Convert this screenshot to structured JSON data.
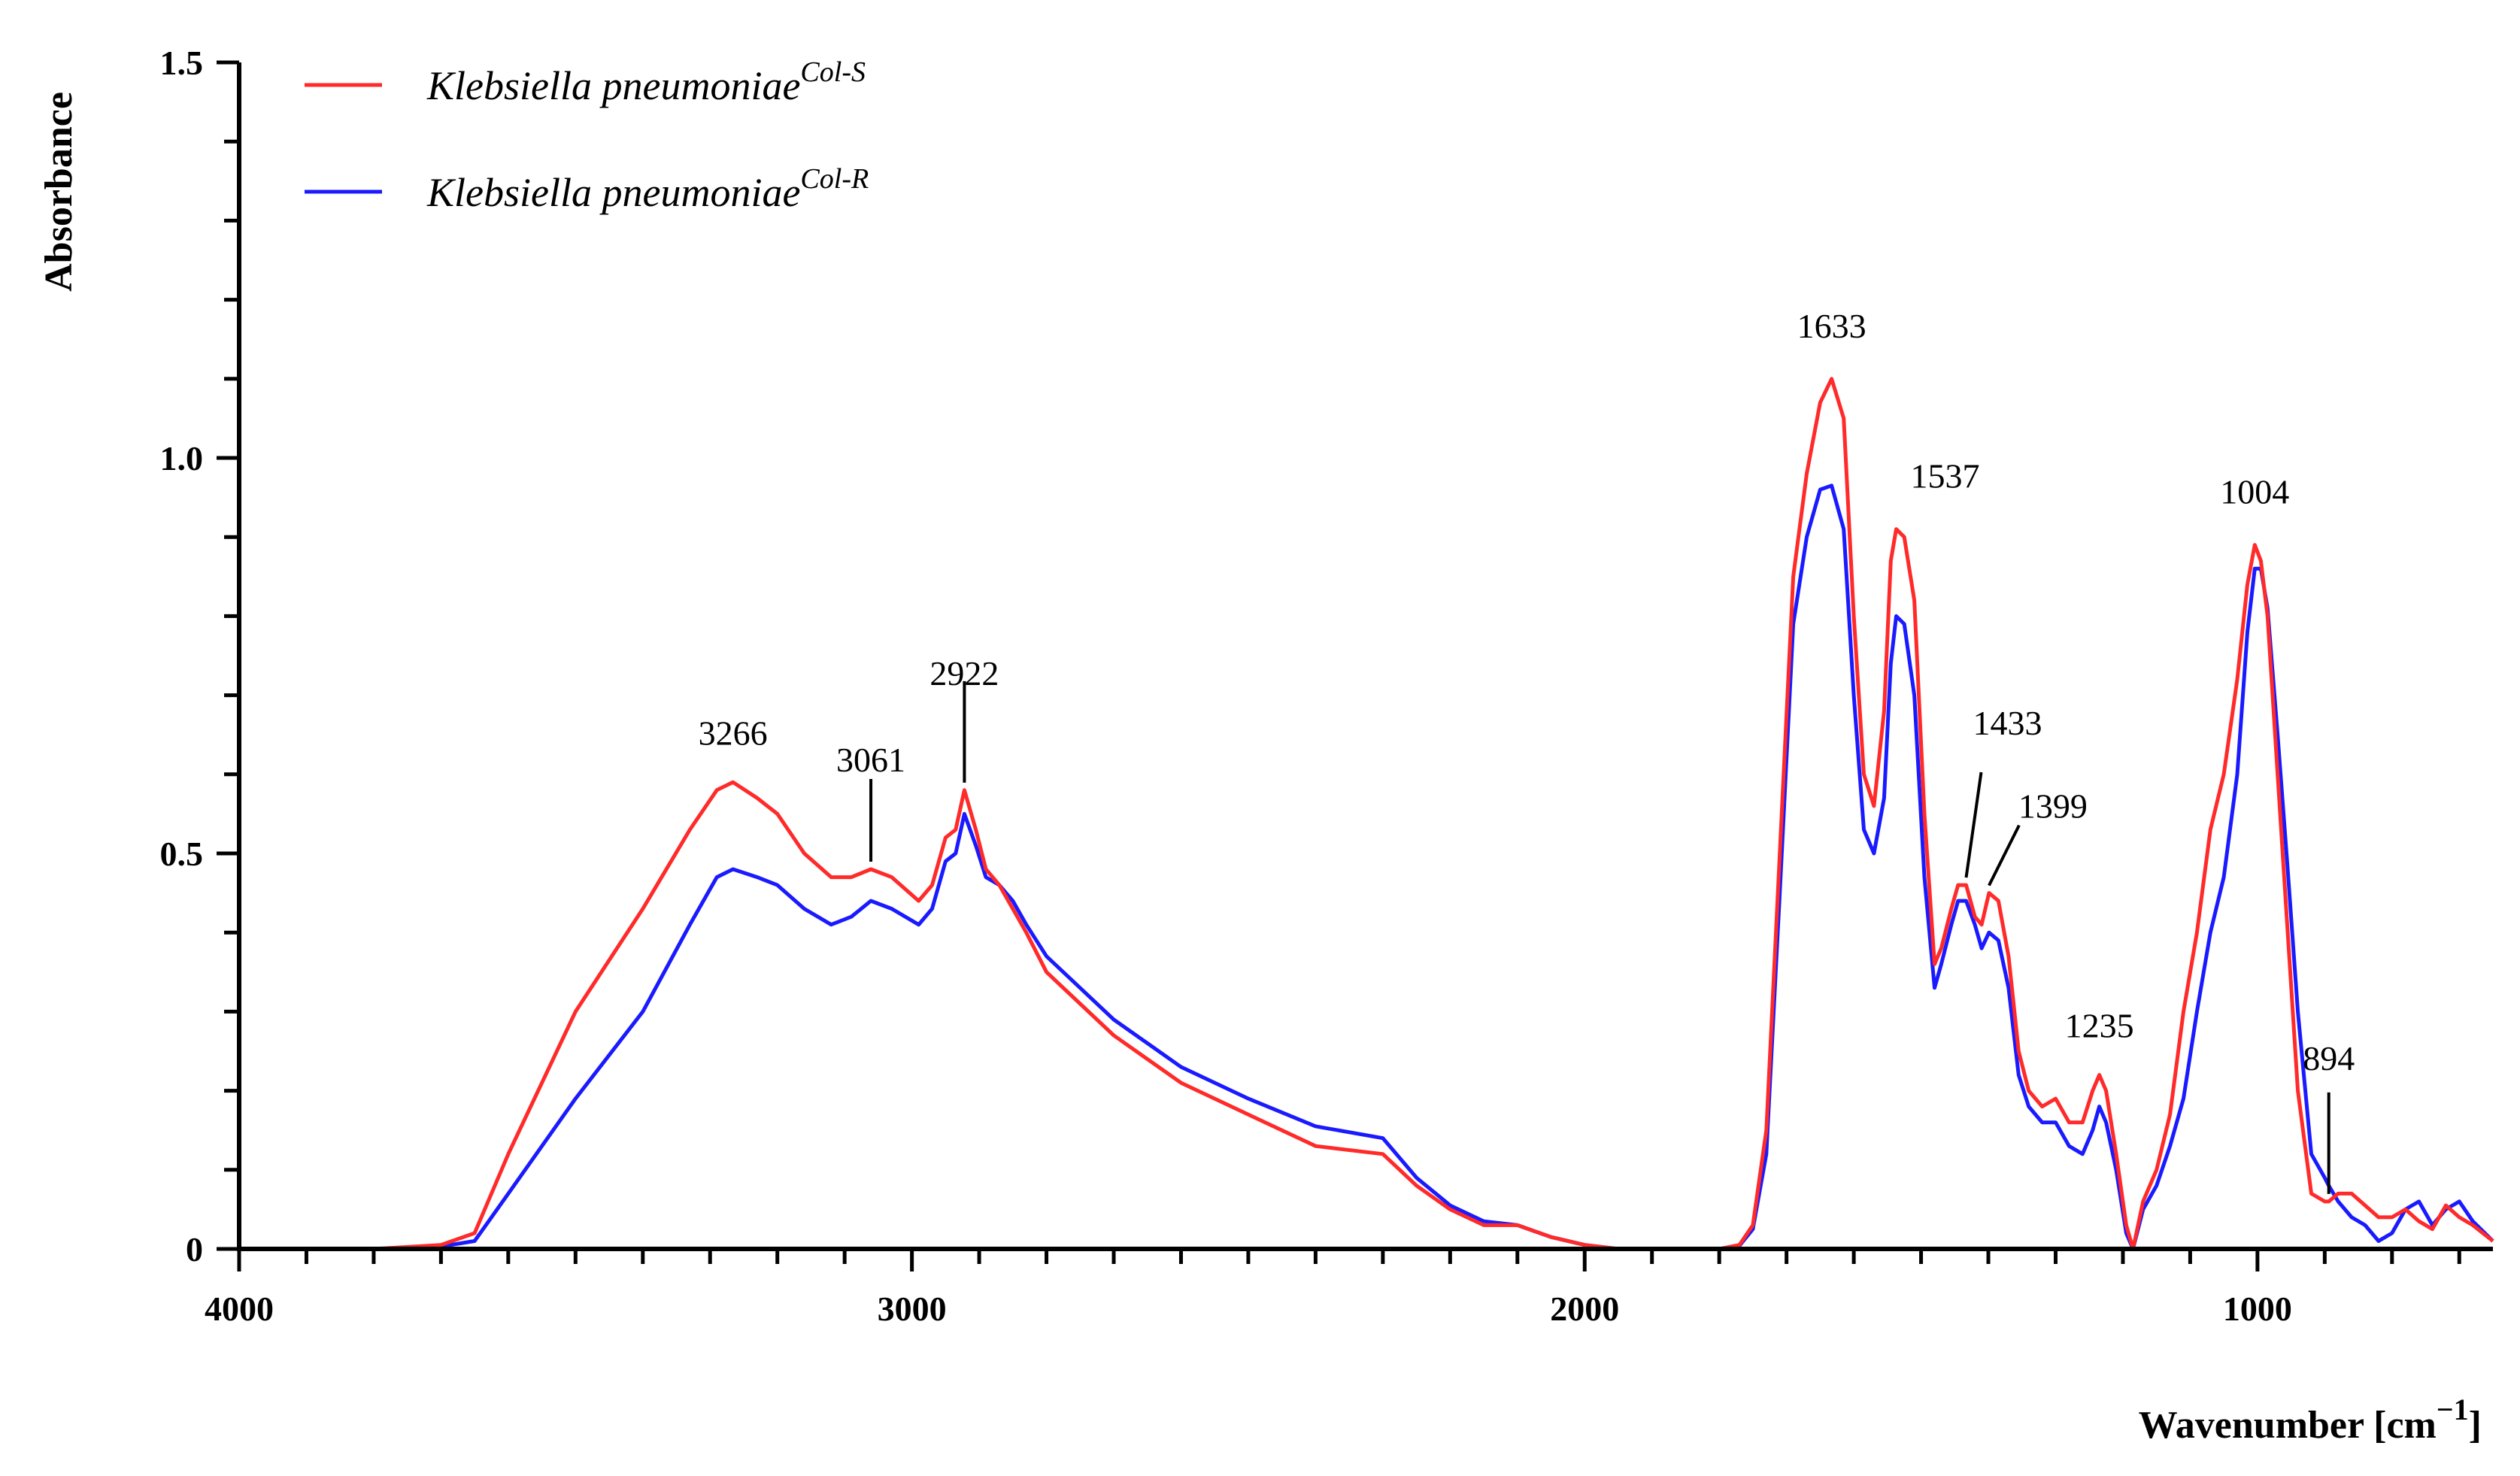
{
  "chart_data": {
    "type": "line",
    "title": "",
    "xlabel": "Wavenumber [cm",
    "xlabel_sup": "−1",
    "xlabel_close": "]",
    "ylabel": "Absorbance",
    "xlim": [
      4000,
      650
    ],
    "ylim": [
      0,
      1.5
    ],
    "x_reversed": true,
    "x_ticks": [
      4000,
      3000,
      2000,
      1000
    ],
    "x_tick_labels": [
      "4000",
      "3000",
      "2000",
      "1000"
    ],
    "y_ticks": [
      0,
      0.5,
      1.0,
      1.5
    ],
    "y_tick_labels": [
      "0",
      "0.5",
      "1.0",
      "1.5"
    ],
    "grid": false,
    "legend_position": "top-left",
    "series": [
      {
        "name": "Klebsiella pneumoniae",
        "name_sup": "Col-S",
        "color": "#ff2a2a",
        "x": [
          4000,
          3800,
          3700,
          3650,
          3600,
          3500,
          3400,
          3330,
          3290,
          3266,
          3230,
          3200,
          3160,
          3120,
          3090,
          3061,
          3030,
          2990,
          2970,
          2950,
          2935,
          2922,
          2905,
          2890,
          2870,
          2850,
          2830,
          2800,
          2700,
          2600,
          2500,
          2400,
          2300,
          2250,
          2200,
          2150,
          2100,
          2050,
          2000,
          1950,
          1900,
          1850,
          1800,
          1770,
          1750,
          1730,
          1710,
          1690,
          1670,
          1650,
          1633,
          1615,
          1600,
          1585,
          1570,
          1555,
          1545,
          1537,
          1525,
          1510,
          1495,
          1480,
          1470,
          1455,
          1445,
          1433,
          1420,
          1410,
          1399,
          1385,
          1370,
          1355,
          1340,
          1320,
          1300,
          1280,
          1260,
          1245,
          1235,
          1225,
          1210,
          1195,
          1185,
          1170,
          1150,
          1130,
          1110,
          1090,
          1070,
          1050,
          1030,
          1015,
          1004,
          995,
          985,
          970,
          955,
          940,
          920,
          900,
          894,
          880,
          860,
          840,
          820,
          800,
          780,
          760,
          740,
          720,
          700,
          680,
          650
        ],
        "y": [
          0,
          0,
          0.005,
          0.02,
          0.12,
          0.3,
          0.43,
          0.53,
          0.58,
          0.59,
          0.57,
          0.55,
          0.5,
          0.47,
          0.47,
          0.48,
          0.47,
          0.44,
          0.46,
          0.52,
          0.53,
          0.58,
          0.53,
          0.48,
          0.46,
          0.43,
          0.4,
          0.35,
          0.27,
          0.21,
          0.17,
          0.13,
          0.12,
          0.08,
          0.05,
          0.03,
          0.03,
          0.015,
          0.005,
          0,
          0,
          0,
          0,
          0.005,
          0.03,
          0.15,
          0.5,
          0.85,
          0.98,
          1.07,
          1.1,
          1.05,
          0.8,
          0.6,
          0.56,
          0.68,
          0.87,
          0.91,
          0.9,
          0.82,
          0.55,
          0.36,
          0.38,
          0.43,
          0.46,
          0.46,
          0.42,
          0.41,
          0.45,
          0.44,
          0.37,
          0.25,
          0.2,
          0.18,
          0.19,
          0.16,
          0.16,
          0.2,
          0.22,
          0.2,
          0.12,
          0.03,
          0,
          0.06,
          0.1,
          0.17,
          0.3,
          0.4,
          0.53,
          0.6,
          0.72,
          0.84,
          0.89,
          0.87,
          0.8,
          0.6,
          0.4,
          0.2,
          0.07,
          0.06,
          0.06,
          0.07,
          0.07,
          0.055,
          0.04,
          0.04,
          0.05,
          0.035,
          0.025,
          0.055,
          0.04,
          0.03,
          0.01
        ],
        "peak_labels": [
          {
            "x": 3266,
            "text": "3266"
          },
          {
            "x": 3061,
            "text": "3061"
          },
          {
            "x": 2922,
            "text": "2922"
          },
          {
            "x": 1633,
            "text": "1633"
          },
          {
            "x": 1537,
            "text": "1537"
          },
          {
            "x": 1433,
            "text": "1433"
          },
          {
            "x": 1399,
            "text": "1399"
          },
          {
            "x": 1235,
            "text": "1235"
          },
          {
            "x": 1004,
            "text": "1004"
          },
          {
            "x": 894,
            "text": "894"
          }
        ]
      },
      {
        "name": "Klebsiella pneumoniae",
        "name_sup": "Col-R",
        "color": "#1a1aff",
        "x": [
          4000,
          3800,
          3700,
          3650,
          3600,
          3500,
          3400,
          3330,
          3290,
          3266,
          3230,
          3200,
          3160,
          3120,
          3090,
          3061,
          3030,
          2990,
          2970,
          2950,
          2935,
          2922,
          2905,
          2890,
          2870,
          2850,
          2830,
          2800,
          2700,
          2600,
          2500,
          2400,
          2300,
          2250,
          2200,
          2150,
          2100,
          2050,
          2000,
          1950,
          1900,
          1850,
          1800,
          1770,
          1750,
          1730,
          1710,
          1690,
          1670,
          1650,
          1633,
          1615,
          1600,
          1585,
          1570,
          1555,
          1545,
          1537,
          1525,
          1510,
          1495,
          1480,
          1470,
          1455,
          1445,
          1433,
          1420,
          1410,
          1399,
          1385,
          1370,
          1355,
          1340,
          1320,
          1300,
          1280,
          1260,
          1245,
          1235,
          1225,
          1210,
          1195,
          1185,
          1170,
          1150,
          1130,
          1110,
          1090,
          1070,
          1050,
          1030,
          1015,
          1004,
          995,
          985,
          970,
          955,
          940,
          920,
          900,
          894,
          880,
          860,
          840,
          820,
          800,
          780,
          760,
          740,
          720,
          700,
          680,
          650
        ],
        "y": [
          0,
          0,
          0.003,
          0.01,
          0.07,
          0.19,
          0.3,
          0.41,
          0.47,
          0.48,
          0.47,
          0.46,
          0.43,
          0.41,
          0.42,
          0.44,
          0.43,
          0.41,
          0.43,
          0.49,
          0.5,
          0.55,
          0.51,
          0.47,
          0.46,
          0.44,
          0.41,
          0.37,
          0.29,
          0.23,
          0.19,
          0.155,
          0.14,
          0.09,
          0.055,
          0.035,
          0.03,
          0.015,
          0.005,
          0,
          0,
          0,
          0,
          0.004,
          0.025,
          0.12,
          0.45,
          0.79,
          0.9,
          0.96,
          0.965,
          0.91,
          0.7,
          0.53,
          0.5,
          0.57,
          0.74,
          0.8,
          0.79,
          0.7,
          0.47,
          0.33,
          0.36,
          0.41,
          0.44,
          0.44,
          0.41,
          0.38,
          0.4,
          0.39,
          0.33,
          0.22,
          0.18,
          0.16,
          0.16,
          0.13,
          0.12,
          0.15,
          0.18,
          0.16,
          0.1,
          0.02,
          0,
          0.05,
          0.08,
          0.13,
          0.19,
          0.3,
          0.4,
          0.47,
          0.6,
          0.78,
          0.86,
          0.86,
          0.81,
          0.65,
          0.48,
          0.3,
          0.12,
          0.09,
          0.08,
          0.06,
          0.04,
          0.03,
          0.01,
          0.02,
          0.05,
          0.06,
          0.03,
          0.05,
          0.06,
          0.035,
          0.01
        ]
      }
    ]
  }
}
